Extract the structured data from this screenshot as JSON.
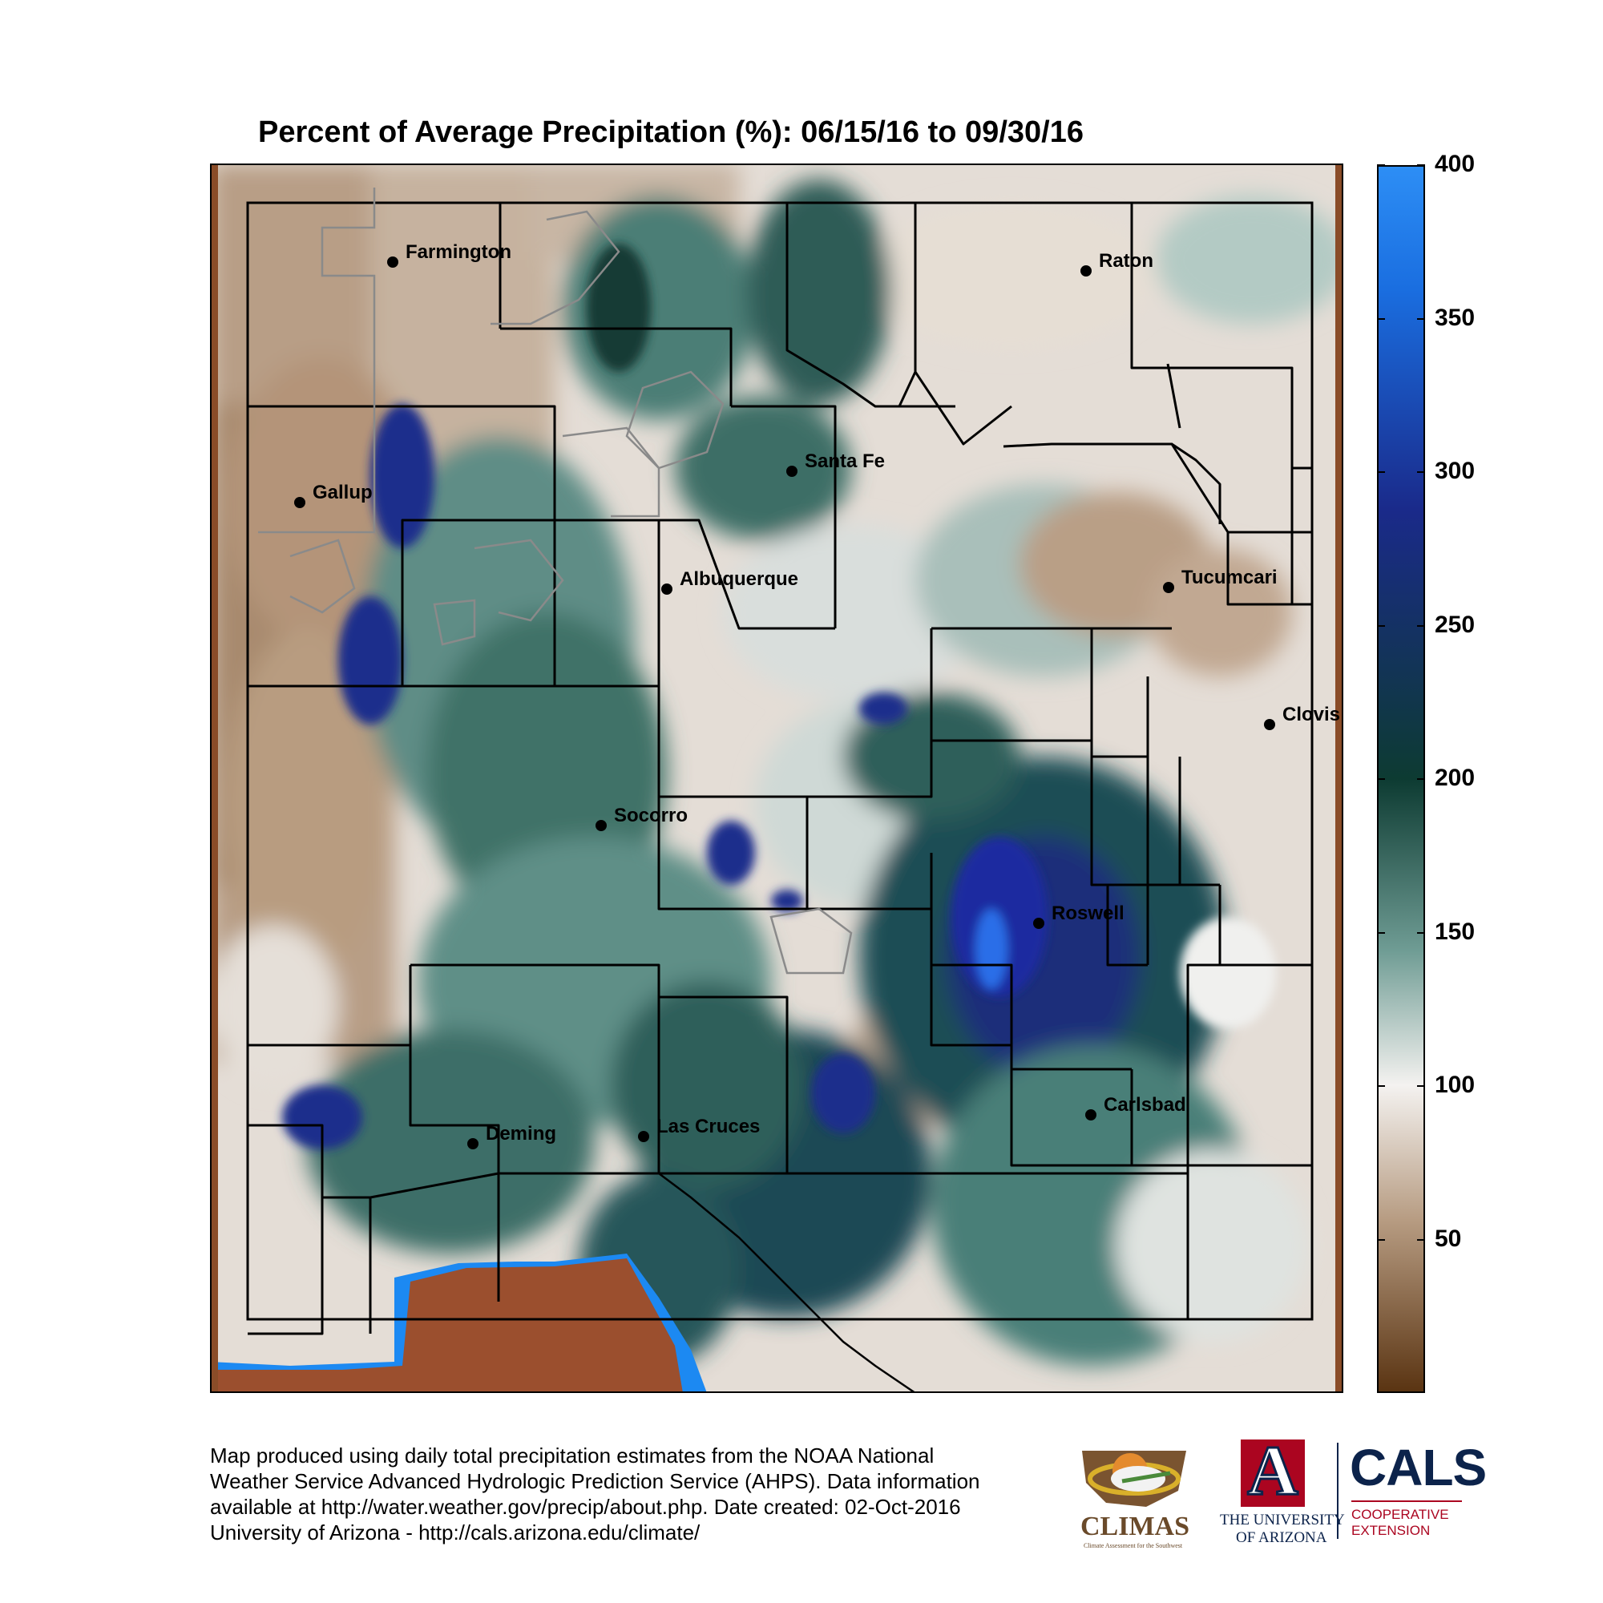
{
  "title": "Percent of Average Precipitation (%): 06/15/16 to 09/30/16",
  "cities": [
    {
      "name": "Farmington",
      "key": "farmington"
    },
    {
      "name": "Raton",
      "key": "raton"
    },
    {
      "name": "Santa Fe",
      "key": "santa-fe"
    },
    {
      "name": "Gallup",
      "key": "gallup"
    },
    {
      "name": "Albuquerque",
      "key": "albuquerque"
    },
    {
      "name": "Tucumcari",
      "key": "tucumcari"
    },
    {
      "name": "Clovis",
      "key": "clovis"
    },
    {
      "name": "Socorro",
      "key": "socorro"
    },
    {
      "name": "Roswell",
      "key": "roswell"
    },
    {
      "name": "Carlsbad",
      "key": "carlsbad"
    },
    {
      "name": "Deming",
      "key": "deming"
    },
    {
      "name": "Las Cruces",
      "key": "las-cruces"
    }
  ],
  "colorbar": {
    "min": 0,
    "max": 400,
    "ticks": [
      50,
      100,
      150,
      200,
      250,
      300,
      350,
      400
    ],
    "tick_labels": [
      "50",
      "100",
      "150",
      "200",
      "250",
      "300",
      "350",
      "400"
    ],
    "colors": {
      "low": "#5a3412",
      "tan": "#b79c82",
      "white": "#f4f2f0",
      "teal": "#6f9c94",
      "dark_green": "#0d3b32",
      "navy": "#1a2a8a",
      "blue": "#1a6ee0",
      "high": "#2d8ef5"
    }
  },
  "footer": {
    "line1": "Map produced using daily total precipitation estimates from the NOAA National",
    "line2": "Weather Service Advanced Hydrologic Prediction Service (AHPS). Data information",
    "line3": "available at http://water.weather.gov/precip/about.php. Date created: 02-Oct-2016",
    "line4": "University of Arizona - http://cals.arizona.edu/climate/"
  },
  "logos": {
    "climas": "CLIMAS",
    "climas_tagline": "Climate Assessment for the Southwest",
    "ua_letter": "A",
    "ua_line1": "THE UNIVERSITY",
    "ua_line2": "OF ARIZONA",
    "cals": "CALS",
    "cals_line1": "COOPERATIVE",
    "cals_line2": "EXTENSION"
  }
}
